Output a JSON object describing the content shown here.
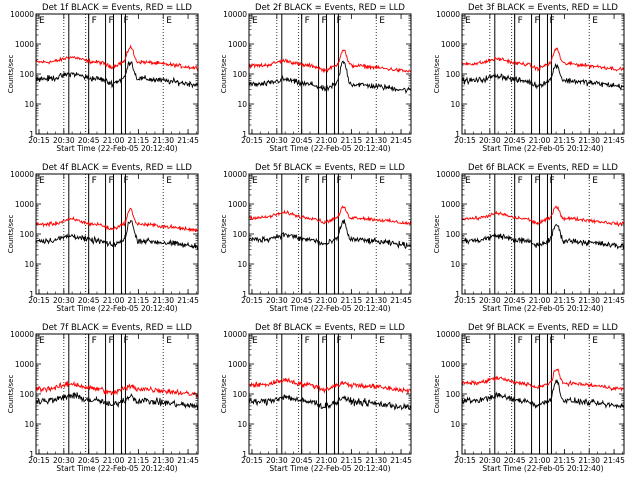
{
  "chart_data": {
    "type": "line",
    "layout": "3x3 grid",
    "yscale": "log",
    "ylim": [
      1,
      10000
    ],
    "ytick_labels": [
      "1",
      "10",
      "100",
      "1000",
      "10000"
    ],
    "xlim_hours": [
      20.22,
      21.85
    ],
    "xtick_labels": [
      "20:15",
      "20:30",
      "20:45",
      "21:00",
      "21:15",
      "21:30",
      "21:45"
    ],
    "xticks_hours": [
      20.25,
      20.5,
      20.75,
      21.0,
      21.25,
      21.5,
      21.75
    ],
    "xlabel": "Start Time (22-Feb-05 20:12:40)",
    "ylabel": "Counts/sec",
    "colors": {
      "events": "#000000",
      "lld": "#ff0000"
    },
    "dotted_lines_hours": [
      20.5,
      20.72,
      21.5
    ],
    "solid_lines_hours": [
      20.55,
      20.75,
      20.92,
      21.0,
      21.08,
      21.12
    ],
    "markers": [
      {
        "label": "E",
        "hour": 20.24
      },
      {
        "label": "F",
        "hour": 20.77
      },
      {
        "label": "F",
        "hour": 20.94
      },
      {
        "label": "F",
        "hour": 21.09
      },
      {
        "label": "E",
        "hour": 21.52
      }
    ],
    "panels": [
      {
        "title": "Det 1f BLACK = Events, RED = LLD",
        "events": {
          "base": 70,
          "peak": 260,
          "noise": 0.12
        },
        "lld": {
          "base": 250,
          "peak": 800,
          "noise": 0.08
        }
      },
      {
        "title": "Det 2f BLACK = Events, RED = LLD",
        "events": {
          "base": 45,
          "peak": 250,
          "noise": 0.12
        },
        "lld": {
          "base": 190,
          "peak": 650,
          "noise": 0.08
        }
      },
      {
        "title": "Det 3f BLACK = Events, RED = LLD",
        "events": {
          "base": 60,
          "peak": 200,
          "noise": 0.12
        },
        "lld": {
          "base": 220,
          "peak": 700,
          "noise": 0.08
        }
      },
      {
        "title": "Det 4f BLACK = Events, RED = LLD",
        "events": {
          "base": 60,
          "peak": 280,
          "noise": 0.12
        },
        "lld": {
          "base": 210,
          "peak": 650,
          "noise": 0.08
        }
      },
      {
        "title": "Det 5f BLACK = Events, RED = LLD",
        "events": {
          "base": 65,
          "peak": 260,
          "noise": 0.12
        },
        "lld": {
          "base": 350,
          "peak": 800,
          "noise": 0.07
        }
      },
      {
        "title": "Det 6f BLACK = Events, RED = LLD",
        "events": {
          "base": 60,
          "peak": 210,
          "noise": 0.12
        },
        "lld": {
          "base": 330,
          "peak": 850,
          "noise": 0.07
        }
      },
      {
        "title": "Det 7f BLACK = Events, RED = LLD",
        "events": {
          "base": 60,
          "peak": 90,
          "noise": 0.14
        },
        "lld": {
          "base": 150,
          "peak": 180,
          "noise": 0.12
        }
      },
      {
        "title": "Det 8f BLACK = Events, RED = LLD",
        "events": {
          "base": 55,
          "peak": 80,
          "noise": 0.14
        },
        "lld": {
          "base": 200,
          "peak": 230,
          "noise": 0.11
        }
      },
      {
        "title": "Det 9f BLACK = Events, RED = LLD",
        "events": {
          "base": 60,
          "peak": 260,
          "noise": 0.12
        },
        "lld": {
          "base": 230,
          "peak": 650,
          "noise": 0.08
        }
      }
    ]
  }
}
